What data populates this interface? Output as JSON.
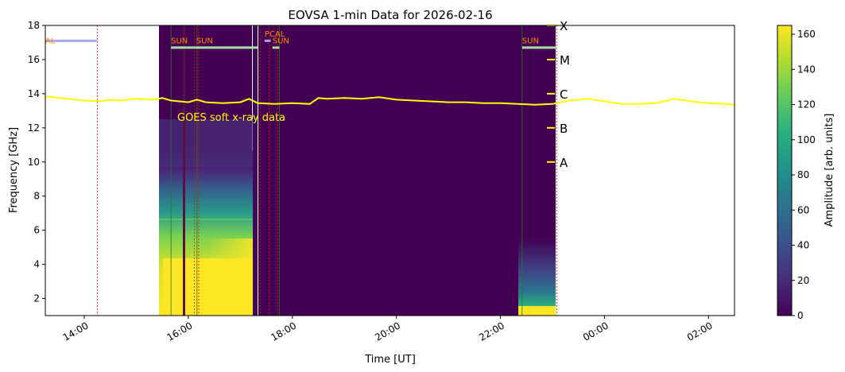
{
  "chart_data": {
    "type": "heatmap",
    "title": "EOVSA 1-min Data for 2026-02-16",
    "xlabel": "Time [UT]",
    "ylabel": "Frequency [GHz]",
    "ylim": [
      1,
      18
    ],
    "xlim": [
      "13:15",
      "02:30"
    ],
    "x_ticks": [
      "14:00",
      "16:00",
      "18:00",
      "20:00",
      "22:00",
      "00:00",
      "02:00"
    ],
    "y_ticks": [
      2,
      4,
      6,
      8,
      10,
      12,
      14,
      16,
      18
    ],
    "colorbar": {
      "label": "Amplitude [arb. units]",
      "range": [
        0,
        165
      ],
      "ticks": [
        0,
        20,
        40,
        60,
        80,
        100,
        120,
        140,
        160
      ],
      "colormap": "viridis"
    },
    "data_segments": [
      {
        "start": "15:40",
        "end": "16:10"
      },
      {
        "start": "16:10",
        "end": "17:20"
      },
      {
        "start": "17:25",
        "end": "17:30"
      },
      {
        "start": "17:35",
        "end": "17:42"
      },
      {
        "start": "17:45",
        "end": "22:25"
      },
      {
        "start": "22:25",
        "end": "23:05"
      }
    ],
    "scan_labels": [
      {
        "label": "AL",
        "time": "13:15"
      },
      {
        "label": "SUN",
        "time": "15:40"
      },
      {
        "label": "SUN",
        "time": "16:09"
      },
      {
        "label": "PCAL",
        "time": "17:28"
      },
      {
        "label": "SUN",
        "time": "17:37"
      },
      {
        "label": "SUN",
        "time": "22:25"
      }
    ],
    "scan_bars": [
      {
        "start": "13:15",
        "end": "14:15",
        "freq": 17.1,
        "color": "#a8a8f0"
      },
      {
        "start": "15:40",
        "end": "17:20",
        "freq": 16.7,
        "color": "#a8dca8"
      },
      {
        "start": "17:28",
        "end": "17:35",
        "freq": 17.1,
        "color": "#a8a8f0"
      },
      {
        "start": "17:37",
        "end": "17:45",
        "freq": 16.7,
        "color": "#a8dca8"
      },
      {
        "start": "22:25",
        "end": "23:05",
        "freq": 16.7,
        "color": "#a8dca8"
      }
    ],
    "red_markers": [
      "14:15",
      "16:07",
      "16:12",
      "17:23",
      "17:33",
      "17:43",
      "23:05"
    ],
    "green_markers": [
      "15:40",
      "16:10",
      "17:45",
      "22:25"
    ],
    "goes": {
      "label": "GOES soft x-ray data",
      "color": "#ffff00",
      "class_labels": [
        {
          "label": "X",
          "freq": 18
        },
        {
          "label": "M",
          "freq": 16
        },
        {
          "label": "C",
          "freq": 14
        },
        {
          "label": "B",
          "freq": 12
        },
        {
          "label": "A",
          "freq": 10
        }
      ],
      "series": {
        "name": "",
        "x": [
          "13:15",
          "13:40",
          "14:00",
          "14:20",
          "14:30",
          "14:40",
          "15:00",
          "15:20",
          "15:30",
          "15:40",
          "15:50",
          "16:00",
          "16:10",
          "16:20",
          "16:40",
          "17:00",
          "17:10",
          "17:20",
          "17:40",
          "18:00",
          "18:20",
          "18:30",
          "18:40",
          "19:00",
          "19:20",
          "19:40",
          "20:00",
          "20:20",
          "20:40",
          "21:00",
          "21:20",
          "21:40",
          "22:00",
          "22:20",
          "22:40",
          "23:00",
          "23:20",
          "23:40",
          "00:00",
          "00:20",
          "00:40",
          "01:00",
          "01:20",
          "01:40",
          "02:00",
          "02:20",
          "02:30"
        ],
        "y": [
          13.85,
          13.7,
          13.6,
          13.55,
          13.65,
          13.6,
          13.7,
          13.65,
          13.75,
          13.6,
          13.55,
          13.5,
          13.65,
          13.5,
          13.45,
          13.5,
          13.7,
          13.45,
          13.4,
          13.45,
          13.4,
          13.75,
          13.7,
          13.75,
          13.7,
          13.8,
          13.65,
          13.6,
          13.55,
          13.5,
          13.5,
          13.45,
          13.45,
          13.4,
          13.35,
          13.4,
          13.6,
          13.7,
          13.55,
          13.4,
          13.4,
          13.45,
          13.7,
          13.55,
          13.45,
          13.4,
          13.35
        ]
      }
    }
  }
}
